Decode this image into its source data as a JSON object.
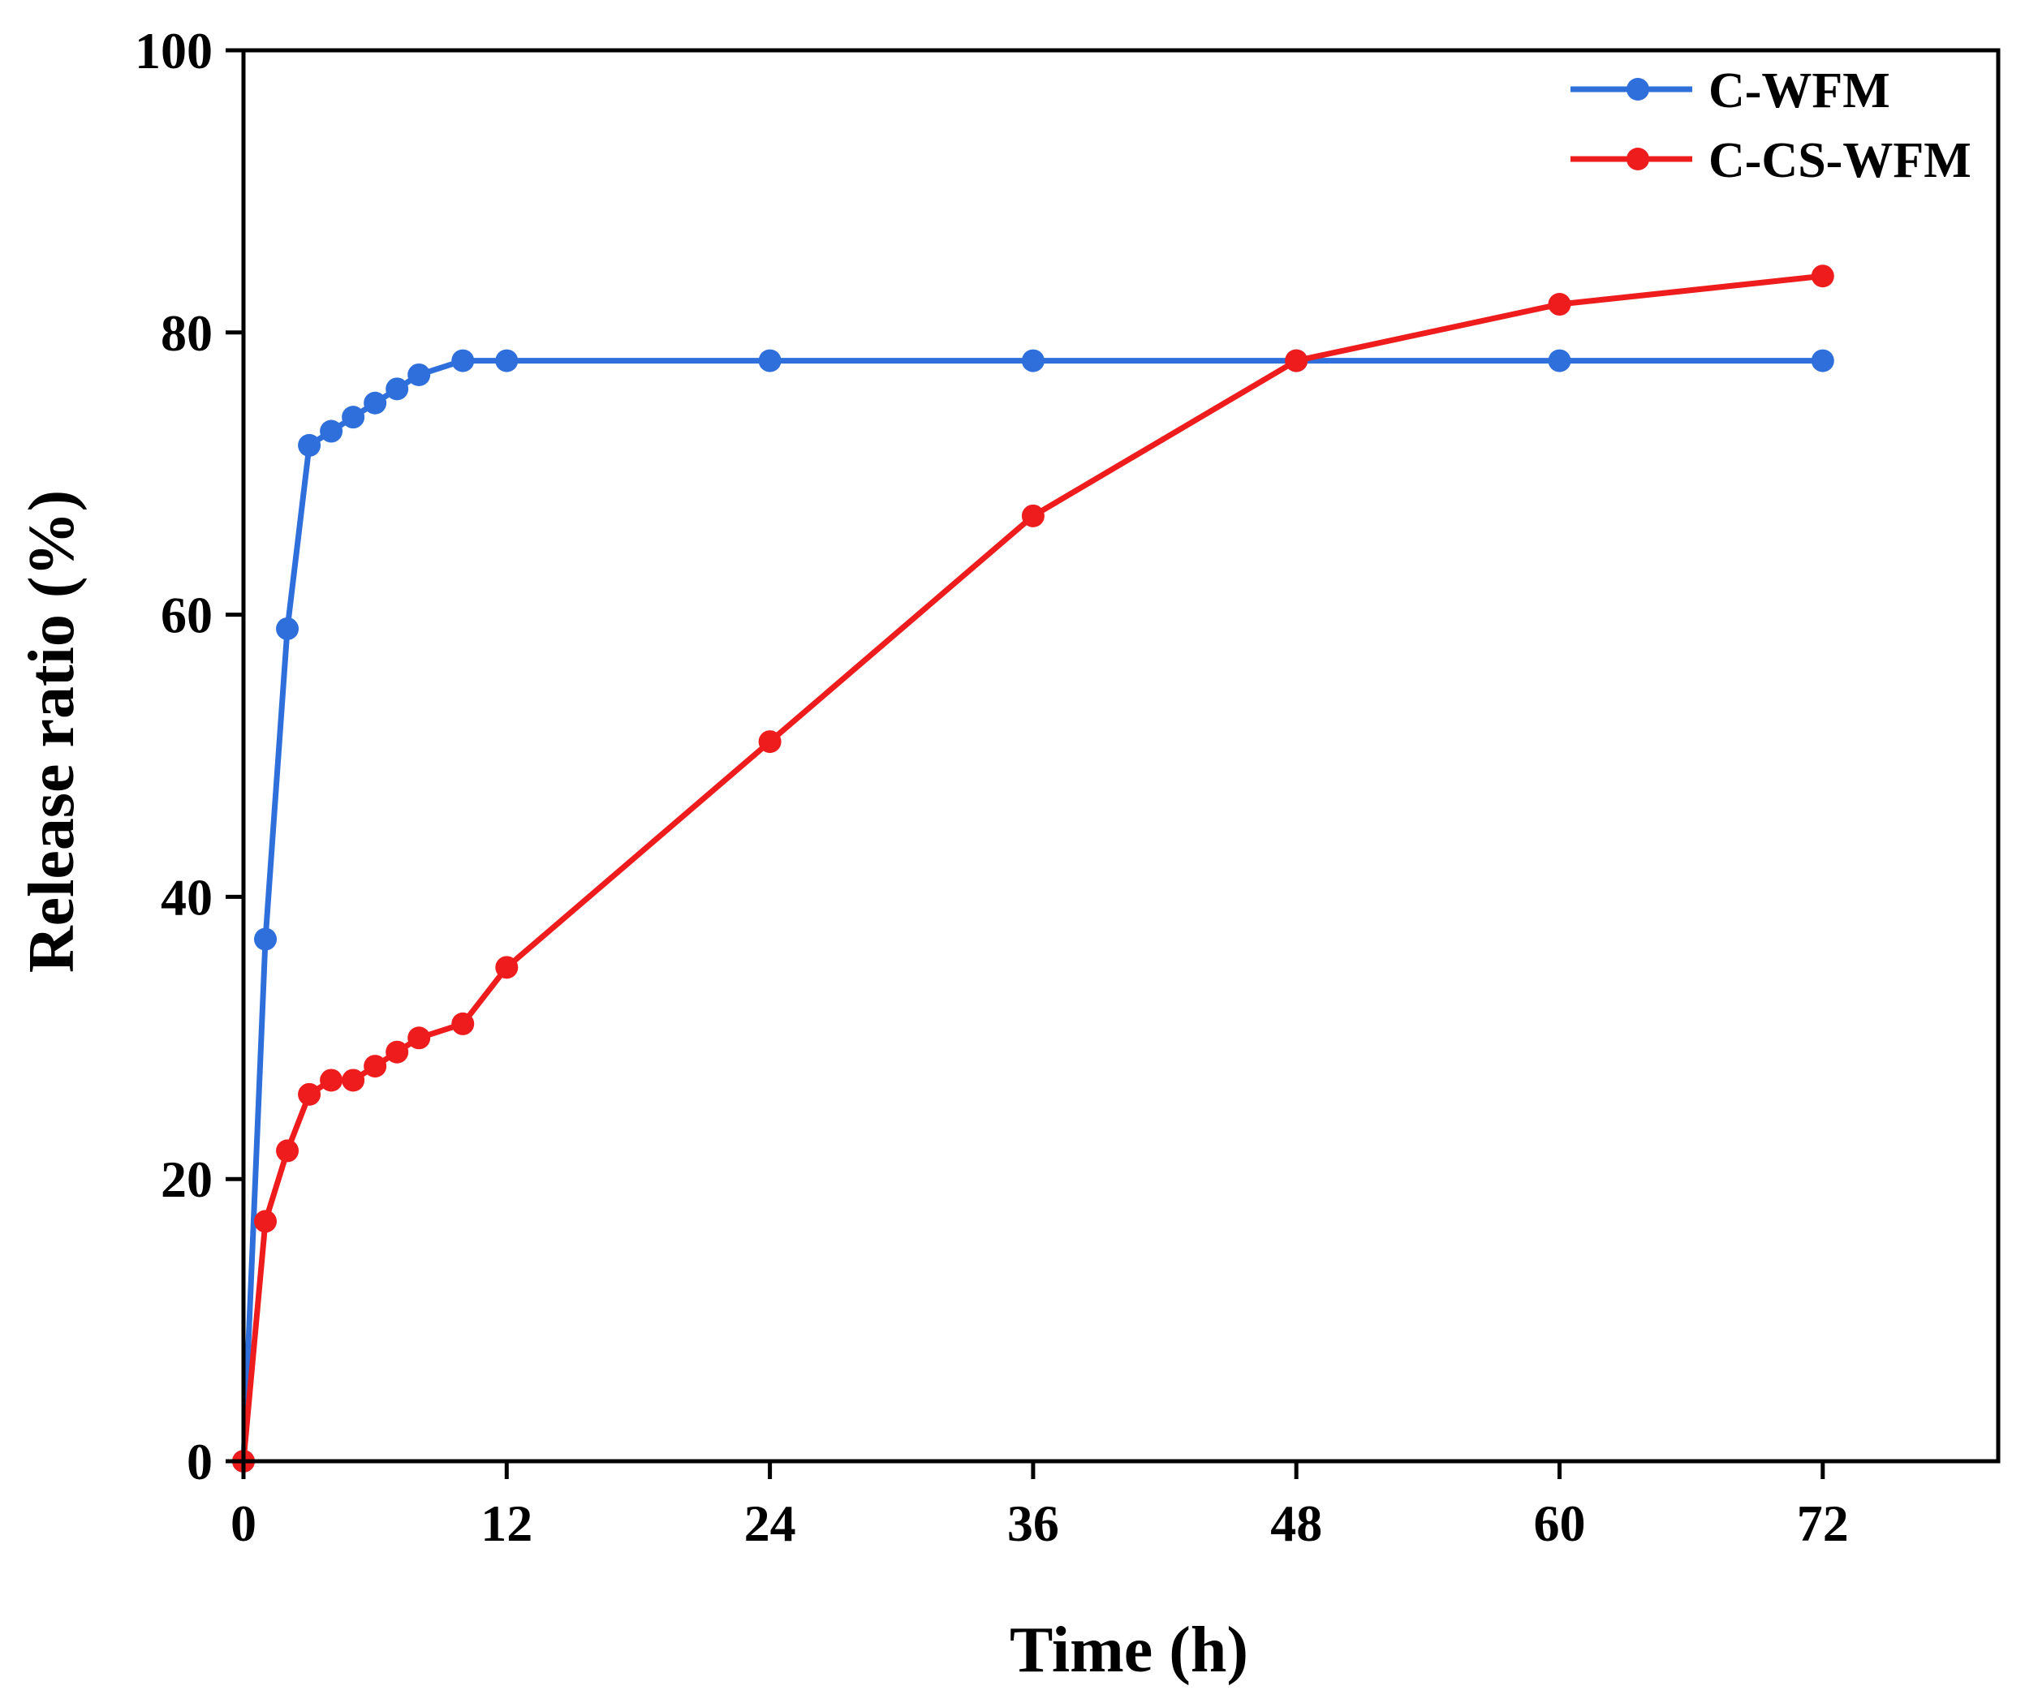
{
  "chart_data": {
    "type": "line",
    "title": "",
    "xlabel": "Time (h)",
    "ylabel": "Release ratio (%)",
    "xlim": [
      0,
      80
    ],
    "ylim": [
      0,
      100
    ],
    "xticks": [
      0,
      12,
      24,
      36,
      48,
      60,
      72
    ],
    "yticks": [
      0,
      20,
      40,
      60,
      80,
      100
    ],
    "grid": false,
    "legend_position": "top-right",
    "series": [
      {
        "name": "C-WFM",
        "color": "#2e6fdc",
        "marker": "circle",
        "x": [
          0,
          1,
          2,
          3,
          4,
          5,
          6,
          7,
          8,
          10,
          12,
          24,
          36,
          48,
          60,
          72
        ],
        "y": [
          0,
          37,
          59,
          72,
          73,
          74,
          75,
          76,
          77,
          78,
          78,
          78,
          78,
          78,
          78,
          78
        ]
      },
      {
        "name": "C-CS-WFM",
        "color": "#ee1c1c",
        "marker": "circle",
        "x": [
          0,
          1,
          2,
          3,
          4,
          5,
          6,
          7,
          8,
          10,
          12,
          24,
          36,
          48,
          60,
          72
        ],
        "y": [
          0,
          17,
          22,
          26,
          27,
          27,
          28,
          29,
          30,
          31,
          35,
          51,
          67,
          78,
          82,
          84
        ]
      }
    ]
  }
}
